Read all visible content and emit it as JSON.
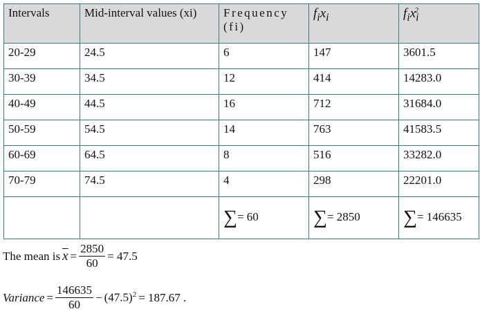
{
  "table": {
    "header": {
      "intervals": "Intervals",
      "mid": "Mid-interval values (xi)",
      "freq": "Frequency (fi)",
      "fx": {
        "f": "f",
        "sub_f": "i",
        "x": "x",
        "sub_x": "i"
      },
      "fx2": {
        "f": "f",
        "sub_f": "i",
        "x": "x",
        "sub_x": "i",
        "sup": "2"
      }
    },
    "rows": [
      [
        "20-29",
        "24.5",
        "6",
        "147",
        "3601.5"
      ],
      [
        "30-39",
        "34.5",
        "12",
        "414",
        "14283.0"
      ],
      [
        "40-49",
        "44.5",
        "16",
        "712",
        "31684.0"
      ],
      [
        "50-59",
        "54.5",
        "14",
        "763",
        "41583.5"
      ],
      [
        "60-69",
        "64.5",
        "8",
        "516",
        "33282.0"
      ],
      [
        "70-79",
        "74.5",
        "4",
        "298",
        "22201.0"
      ]
    ],
    "totals": {
      "sign": "∑",
      "values": [
        "= 60",
        "= 2850",
        "= 146635"
      ]
    }
  },
  "mean": {
    "label": "The mean is",
    "symbol": "x",
    "eq": "=",
    "numerator": "2850",
    "denominator": "60",
    "result": "= 47.5"
  },
  "variance": {
    "label": "Variance",
    "eq": "=",
    "numerator": "146635",
    "denominator": "60",
    "minus": "−",
    "base": "(47.5)",
    "power": "2",
    "result": "= 187.67 ."
  }
}
